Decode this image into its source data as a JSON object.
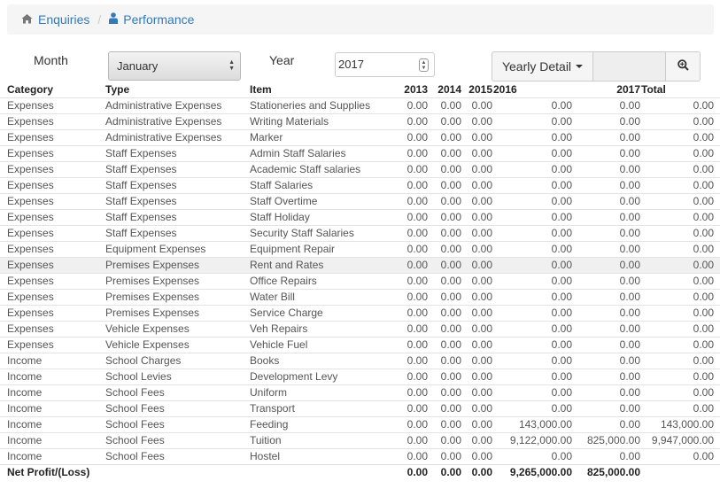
{
  "breadcrumb": {
    "home": "Enquiries",
    "current": "Performance"
  },
  "filters": {
    "month_label": "Month",
    "month_value": "January",
    "year_label": "Year",
    "year_value": "2017",
    "view_button": "Yearly Detail",
    "filter_value": ""
  },
  "columns": {
    "category": "Category",
    "type": "Type",
    "item": "Item",
    "y2013": "2013",
    "y2014": "2014",
    "y2015": "2015",
    "y2016": "2016",
    "y2017": "2017",
    "total": "Total"
  },
  "rows": [
    [
      "Expenses",
      "Administrative Expenses",
      "Stationeries and Supplies",
      "0.00",
      "0.00",
      "0.00",
      "0.00",
      "0.00",
      "0.00"
    ],
    [
      "Expenses",
      "Administrative Expenses",
      "Writing Materials",
      "0.00",
      "0.00",
      "0.00",
      "0.00",
      "0.00",
      "0.00"
    ],
    [
      "Expenses",
      "Administrative Expenses",
      "Marker",
      "0.00",
      "0.00",
      "0.00",
      "0.00",
      "0.00",
      "0.00"
    ],
    [
      "Expenses",
      "Staff Expenses",
      "Admin Staff Salaries",
      "0.00",
      "0.00",
      "0.00",
      "0.00",
      "0.00",
      "0.00"
    ],
    [
      "Expenses",
      "Staff Expenses",
      "Academic Staff salaries",
      "0.00",
      "0.00",
      "0.00",
      "0.00",
      "0.00",
      "0.00"
    ],
    [
      "Expenses",
      "Staff Expenses",
      "Staff Salaries",
      "0.00",
      "0.00",
      "0.00",
      "0.00",
      "0.00",
      "0.00"
    ],
    [
      "Expenses",
      "Staff Expenses",
      "Staff Overtime",
      "0.00",
      "0.00",
      "0.00",
      "0.00",
      "0.00",
      "0.00"
    ],
    [
      "Expenses",
      "Staff Expenses",
      "Staff Holiday",
      "0.00",
      "0.00",
      "0.00",
      "0.00",
      "0.00",
      "0.00"
    ],
    [
      "Expenses",
      "Staff Expenses",
      "Security Staff Salaries",
      "0.00",
      "0.00",
      "0.00",
      "0.00",
      "0.00",
      "0.00"
    ],
    [
      "Expenses",
      "Equipment Expenses",
      "Equipment Repair",
      "0.00",
      "0.00",
      "0.00",
      "0.00",
      "0.00",
      "0.00"
    ],
    [
      "Expenses",
      "Premises Expenses",
      "Rent and Rates",
      "0.00",
      "0.00",
      "0.00",
      "0.00",
      "0.00",
      "0.00"
    ],
    [
      "Expenses",
      "Premises Expenses",
      "Office Repairs",
      "0.00",
      "0.00",
      "0.00",
      "0.00",
      "0.00",
      "0.00"
    ],
    [
      "Expenses",
      "Premises Expenses",
      "Water Bill",
      "0.00",
      "0.00",
      "0.00",
      "0.00",
      "0.00",
      "0.00"
    ],
    [
      "Expenses",
      "Premises Expenses",
      "Service Charge",
      "0.00",
      "0.00",
      "0.00",
      "0.00",
      "0.00",
      "0.00"
    ],
    [
      "Expenses",
      "Vehicle Expenses",
      "Veh Repairs",
      "0.00",
      "0.00",
      "0.00",
      "0.00",
      "0.00",
      "0.00"
    ],
    [
      "Expenses",
      "Vehicle Expenses",
      "Vehicle Fuel",
      "0.00",
      "0.00",
      "0.00",
      "0.00",
      "0.00",
      "0.00"
    ],
    [
      "Income",
      "School Charges",
      "Books",
      "0.00",
      "0.00",
      "0.00",
      "0.00",
      "0.00",
      "0.00"
    ],
    [
      "Income",
      "School Levies",
      "Development Levy",
      "0.00",
      "0.00",
      "0.00",
      "0.00",
      "0.00",
      "0.00"
    ],
    [
      "Income",
      "School Fees",
      "Uniform",
      "0.00",
      "0.00",
      "0.00",
      "0.00",
      "0.00",
      "0.00"
    ],
    [
      "Income",
      "School Fees",
      "Transport",
      "0.00",
      "0.00",
      "0.00",
      "0.00",
      "0.00",
      "0.00"
    ],
    [
      "Income",
      "School Fees",
      "Feeding",
      "0.00",
      "0.00",
      "0.00",
      "143,000.00",
      "0.00",
      "143,000.00"
    ],
    [
      "Income",
      "School Fees",
      "Tuition",
      "0.00",
      "0.00",
      "0.00",
      "9,122,000.00",
      "825,000.00",
      "9,947,000.00"
    ],
    [
      "Income",
      "School Fees",
      "Hostel",
      "0.00",
      "0.00",
      "0.00",
      "0.00",
      "0.00",
      "0.00"
    ]
  ],
  "highlight_row": 10,
  "footer": {
    "label": "Net Profit/(Loss)",
    "y2013": "0.00",
    "y2014": "0.00",
    "y2015": "0.00",
    "y2016": "9,265,000.00",
    "y2017": "825,000.00",
    "total": ""
  },
  "colors": {
    "link": "#337ab7",
    "breadcrumb_bg": "#f5f5f5",
    "row_highlight": "#f0f0f0"
  }
}
